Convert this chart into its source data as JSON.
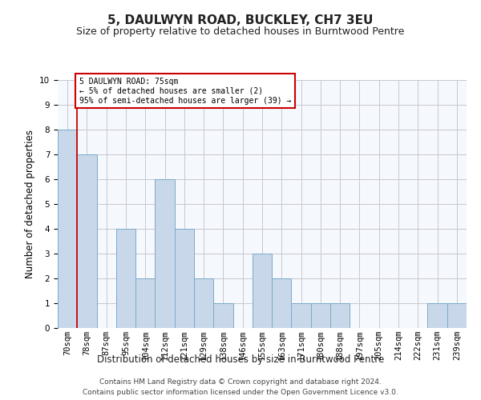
{
  "title": "5, DAULWYN ROAD, BUCKLEY, CH7 3EU",
  "subtitle": "Size of property relative to detached houses in Burntwood Pentre",
  "xlabel": "Distribution of detached houses by size in Burntwood Pentre",
  "ylabel": "Number of detached properties",
  "footer_line1": "Contains HM Land Registry data © Crown copyright and database right 2024.",
  "footer_line2": "Contains public sector information licensed under the Open Government Licence v3.0.",
  "categories": [
    "70sqm",
    "78sqm",
    "87sqm",
    "95sqm",
    "104sqm",
    "112sqm",
    "121sqm",
    "129sqm",
    "138sqm",
    "146sqm",
    "155sqm",
    "163sqm",
    "171sqm",
    "180sqm",
    "188sqm",
    "197sqm",
    "205sqm",
    "214sqm",
    "222sqm",
    "231sqm",
    "239sqm"
  ],
  "values": [
    8,
    7,
    0,
    4,
    2,
    6,
    4,
    2,
    1,
    0,
    3,
    2,
    1,
    1,
    1,
    0,
    0,
    0,
    0,
    1,
    1
  ],
  "bar_color": "#c8d8ea",
  "bar_edge_color": "#7aaac8",
  "highlight_line_color": "#cc0000",
  "annotation_text": "5 DAULWYN ROAD: 75sqm\n← 5% of detached houses are smaller (2)\n95% of semi-detached houses are larger (39) →",
  "annotation_box_color": "#cc0000",
  "ylim": [
    0,
    10
  ],
  "yticks": [
    0,
    1,
    2,
    3,
    4,
    5,
    6,
    7,
    8,
    9,
    10
  ],
  "background_color": "#ffffff",
  "plot_background_color": "#f5f8fc",
  "grid_color": "#c8c8d0",
  "title_fontsize": 11,
  "subtitle_fontsize": 9,
  "axis_label_fontsize": 8.5,
  "tick_fontsize": 7.5,
  "footer_fontsize": 6.5
}
